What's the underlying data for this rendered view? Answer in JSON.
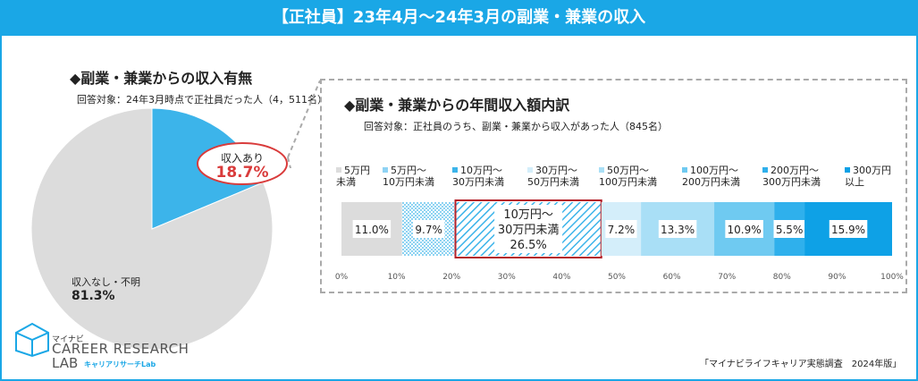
{
  "header": {
    "title": "【正社員】23年4月～24年3月の副業・兼業の収入"
  },
  "left": {
    "title": "◆副業・兼業からの収入有無",
    "note": "回答対象：24年3月時点で正社員だった人（4，511名）"
  },
  "right": {
    "title": "◆副業・兼業からの年間収入額内訳",
    "note": "回答対象：正社員のうち、副業・兼業から収入があった人（845名）"
  },
  "footer_note": "「マイナビライフキャリア実態調査　2024年版」",
  "logo": {
    "line1": "マイナビ",
    "line2": "CAREER RESEARCH",
    "line3": "LAB",
    "line4": "キャリアリサーチLab"
  },
  "colors": {
    "accent": "#1aa7e6",
    "highlight": "#d93b3b",
    "gray": "#dcdcdc"
  },
  "chart_data": [
    {
      "type": "pie",
      "slices": [
        {
          "label": "収入あり",
          "value": 18.7,
          "display": "18.7%",
          "color": "#3cb4ea"
        },
        {
          "label": "収入なし・不明",
          "value": 81.3,
          "display": "81.3%",
          "color": "#dcdcdc"
        }
      ]
    },
    {
      "type": "bar",
      "orientation": "horizontal-stacked",
      "xlim": [
        0,
        100
      ],
      "ticks": [
        "0%",
        "10%",
        "20%",
        "30%",
        "40%",
        "50%",
        "60%",
        "70%",
        "80%",
        "90%",
        "100%"
      ],
      "highlight_index": 2,
      "series": [
        {
          "name": "5万円未満",
          "legend_lines": [
            "5万円",
            "未満"
          ],
          "value": 11.0,
          "display": "11.0%",
          "color": "#dcdcdc",
          "pattern": "solid"
        },
        {
          "name": "5万円～10万円未満",
          "legend_lines": [
            "5万円～",
            "10万円未満"
          ],
          "value": 9.7,
          "display": "9.7%",
          "color": "#8fd3f4",
          "pattern": "dots"
        },
        {
          "name": "10万円～30万円未満",
          "legend_lines": [
            "10万円～",
            "30万円未満"
          ],
          "value": 26.5,
          "display": "26.5%",
          "label_lines": [
            "10万円～",
            "30万円未満"
          ],
          "color": "#3cb4ea",
          "pattern": "hatch"
        },
        {
          "name": "30万円～50万円未満",
          "legend_lines": [
            "30万円～",
            "50万円未満"
          ],
          "value": 7.2,
          "display": "7.2%",
          "color": "#d4eefa",
          "pattern": "solid"
        },
        {
          "name": "50万円～100万円未満",
          "legend_lines": [
            "50万円～",
            "100万円未満"
          ],
          "value": 13.3,
          "display": "13.3%",
          "color": "#a9dff6",
          "pattern": "solid"
        },
        {
          "name": "100万円～200万円未満",
          "legend_lines": [
            "100万円～",
            "200万円未満"
          ],
          "value": 10.9,
          "display": "10.9%",
          "color": "#6fcaf1",
          "pattern": "solid"
        },
        {
          "name": "200万円～300万円未満",
          "legend_lines": [
            "200万円～",
            "300万円未満"
          ],
          "value": 5.5,
          "display": "5.5%",
          "color": "#2fb0ec",
          "pattern": "solid"
        },
        {
          "name": "300万円以上",
          "legend_lines": [
            "300万円",
            "以上"
          ],
          "value": 15.9,
          "display": "15.9%",
          "color": "#0ea1e6",
          "pattern": "solid"
        }
      ]
    }
  ]
}
